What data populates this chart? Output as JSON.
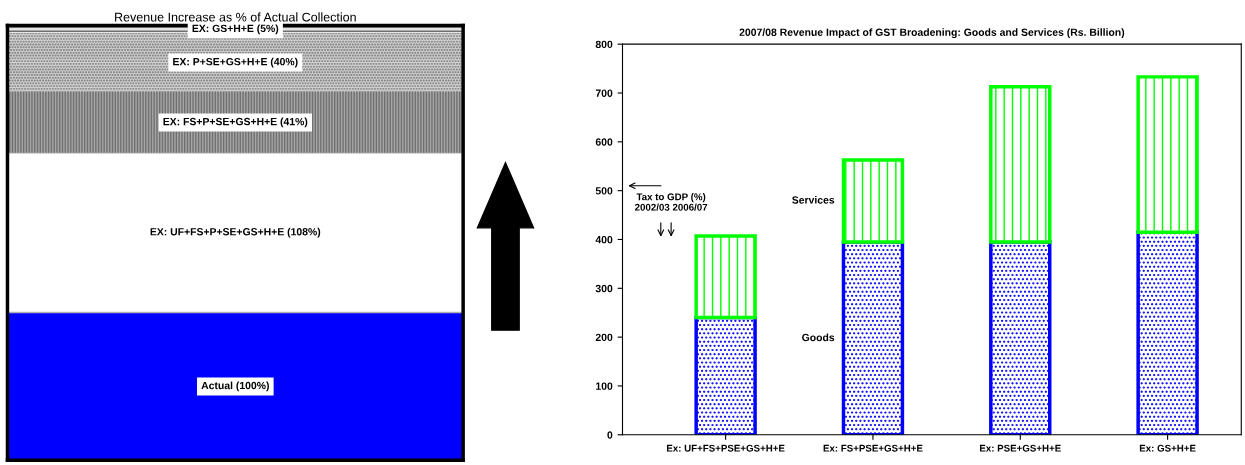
{
  "chart_data": [
    {
      "type": "bar",
      "title": "Revenue Increase as % of Actual Collection",
      "stacked": true,
      "categories": [
        null
      ],
      "series": [
        {
          "color": "#0000ff",
          "values": [
            100
          ],
          "value_labels": [
            "Actual (100%)"
          ]
        },
        {
          "values": [
            108
          ],
          "value_labels": [
            "EX: UF+FS+P+SE+GS+H+E (108%)"
          ]
        },
        {
          "color": "#a6a6a6",
          "values": [
            41
          ],
          "value_labels": [
            "EX: FS+P+SE+GS+H+E (41%)"
          ]
        },
        {
          "color": "#d0d0d0",
          "values": [
            40
          ],
          "value_labels": [
            "EX: P+SE+GS+H+E (40%)"
          ]
        },
        {
          "color": "#e6e6e6",
          "values": [
            5
          ],
          "value_labels": [
            "EX: GS+H+E (5%)"
          ]
        }
      ]
    },
    {
      "type": "bar",
      "title": "2007/08 Revenue Impact of GST Broadening: Goods and Services (Rs. Billion)",
      "stacked": true,
      "categories": [
        "Ex: UF+FS+PSE+GS+H+E",
        "Ex: FS+PSE+GS+H+E",
        "Ex: PSE+GS+H+E",
        "Ex: GS+H+E"
      ],
      "series": [
        {
          "name": "Goods",
          "color": "#0000ff",
          "values": [
            240,
            395,
            395,
            415
          ]
        },
        {
          "name": "Services",
          "color": "#00ff00",
          "values": [
            167,
            168,
            318,
            318
          ]
        }
      ],
      "ylim": [
        0,
        800
      ],
      "yticks": [
        0,
        100,
        200,
        300,
        400,
        500,
        600,
        700,
        800
      ],
      "annotations": [
        "Tax to GDP (%)\n2002/03 2006/07"
      ],
      "grid": false
    }
  ]
}
